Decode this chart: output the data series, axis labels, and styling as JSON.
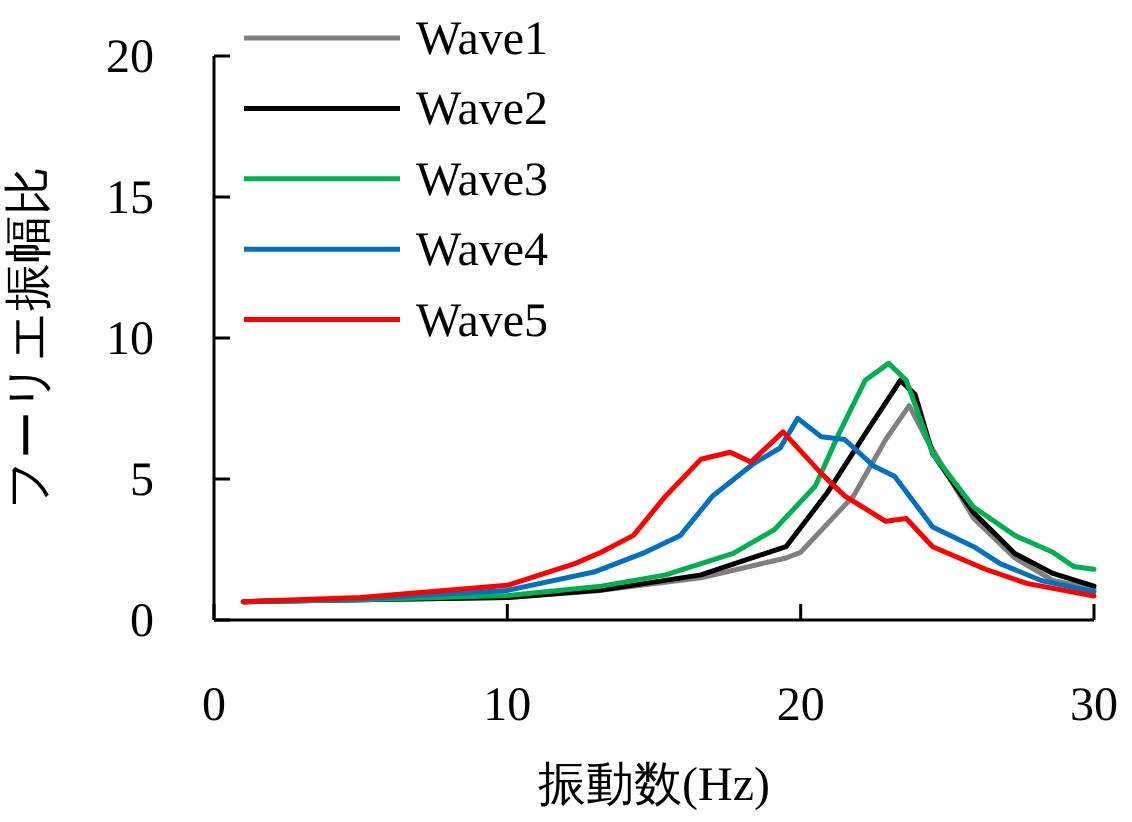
{
  "chart_data": {
    "type": "line",
    "xlabel": "振動数(Hz)",
    "ylabel": "フーリエ振幅比",
    "xlim": [
      0,
      30
    ],
    "ylim": [
      0,
      20
    ],
    "xticks": [
      0,
      10,
      20,
      30
    ],
    "yticks": [
      0,
      5,
      10,
      15,
      20
    ],
    "legend": "top left",
    "grid": false,
    "marker": "none",
    "line_style": "solid",
    "series": [
      {
        "name": "Wave1",
        "color": "#808080",
        "x": [
          1,
          5,
          10,
          13.2,
          16.6,
          19.5,
          20,
          21.8,
          22.9,
          23.7,
          24.3,
          25.9,
          27.3,
          28.6,
          30
        ],
        "values": [
          0.65,
          0.72,
          0.8,
          1.05,
          1.5,
          2.2,
          2.4,
          4.4,
          6.4,
          7.6,
          6.4,
          3.6,
          2.2,
          1.4,
          1.1
        ]
      },
      {
        "name": "Wave2",
        "color": "#000000",
        "x": [
          1,
          5,
          10,
          13.2,
          16.6,
          19.5,
          20.9,
          22.2,
          23.4,
          23.9,
          24.5,
          25.9,
          27.3,
          28.6,
          30
        ],
        "values": [
          0.65,
          0.72,
          0.8,
          1.06,
          1.6,
          2.6,
          4.5,
          6.6,
          8.5,
          8.0,
          5.9,
          3.8,
          2.36,
          1.65,
          1.2
        ]
      },
      {
        "name": "Wave3",
        "color": "#00b050",
        "x": [
          1,
          5,
          10,
          13.2,
          15.4,
          17.7,
          19.1,
          20.5,
          21.3,
          22.2,
          23.0,
          23.6,
          24.5,
          25.9,
          27.3,
          28.6,
          29.3,
          30
        ],
        "values": [
          0.65,
          0.72,
          0.87,
          1.2,
          1.6,
          2.36,
          3.2,
          4.75,
          6.6,
          8.5,
          9.1,
          8.5,
          5.9,
          4.0,
          3.0,
          2.4,
          1.9,
          1.8
        ]
      },
      {
        "name": "Wave4",
        "color": "#0070c0",
        "x": [
          1,
          5,
          10,
          12.95,
          14.7,
          15.9,
          17.0,
          18.4,
          19.3,
          19.9,
          20.7,
          21.5,
          22.5,
          23.2,
          24.5,
          25.9,
          26.8,
          28.2,
          30
        ],
        "values": [
          0.65,
          0.75,
          1.05,
          1.7,
          2.4,
          3.0,
          4.4,
          5.55,
          6.1,
          7.15,
          6.5,
          6.4,
          5.45,
          5.1,
          3.3,
          2.6,
          2.0,
          1.4,
          1.0
        ]
      },
      {
        "name": "Wave5",
        "color": "#ff0000",
        "x": [
          1,
          5,
          10,
          12.3,
          13.2,
          14.3,
          15.4,
          16.6,
          17.6,
          18.3,
          19.4,
          20.7,
          21.5,
          22.9,
          23.6,
          24.5,
          26.3,
          27.7,
          30
        ],
        "values": [
          0.65,
          0.8,
          1.23,
          2.0,
          2.4,
          3.0,
          4.4,
          5.7,
          5.95,
          5.6,
          6.67,
          5.2,
          4.4,
          3.5,
          3.6,
          2.6,
          1.8,
          1.3,
          0.85
        ]
      }
    ]
  }
}
